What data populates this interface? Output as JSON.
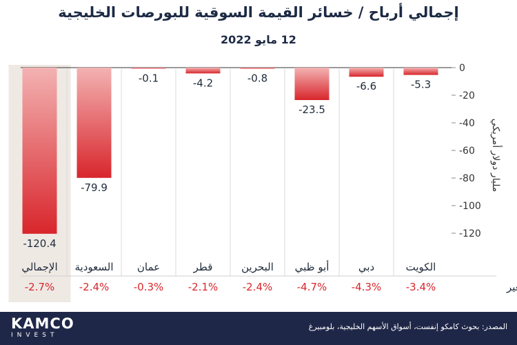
{
  "title": "إجمالي أرباح / خسائر القيمة السوقية للبورصات الخليجية",
  "subtitle": "12 مايو 2022",
  "chart_data": {
    "type": "bar",
    "categories": [
      "الكويت",
      "دبي",
      "أبو ظبي",
      "البحرين",
      "قطر",
      "عمان",
      "السعودية",
      "الإجمالي"
    ],
    "values": [
      -5.3,
      -6.6,
      -23.5,
      -0.8,
      -4.2,
      -0.1,
      -79.9,
      -120.4
    ],
    "value_labels": [
      "-5.3",
      "-6.6",
      "-23.5",
      "-0.8",
      "-4.2",
      "-0.1",
      "-79.9",
      "-120.4"
    ],
    "change_label": "التغير",
    "change_values": [
      "-3.4%",
      "-4.3%",
      "-4.7%",
      "-2.4%",
      "-2.1%",
      "-0.3%",
      "-2.4%",
      "-2.7%"
    ],
    "ylabel": "مليار دولار أمريكي",
    "yticks": [
      0,
      -20,
      -40,
      -60,
      -80,
      -100,
      -120
    ],
    "ylim": [
      -130,
      0
    ],
    "highlight_category": "الإجمالي",
    "bar_color_top": "#f3b2b2",
    "bar_color_bottom": "#d8262c",
    "label_color": "#d8262c",
    "highlight_bg": "#efe9e4"
  },
  "footer": {
    "logo_main": "KAMCO",
    "logo_sub": "INVEST",
    "source": "المصدر: بحوث كامكو إنفست، أسواق الأسهم الخليجية، بلومبيرغ"
  },
  "colors": {
    "footer_bg": "#1f2748",
    "title": "#1c2a44"
  }
}
